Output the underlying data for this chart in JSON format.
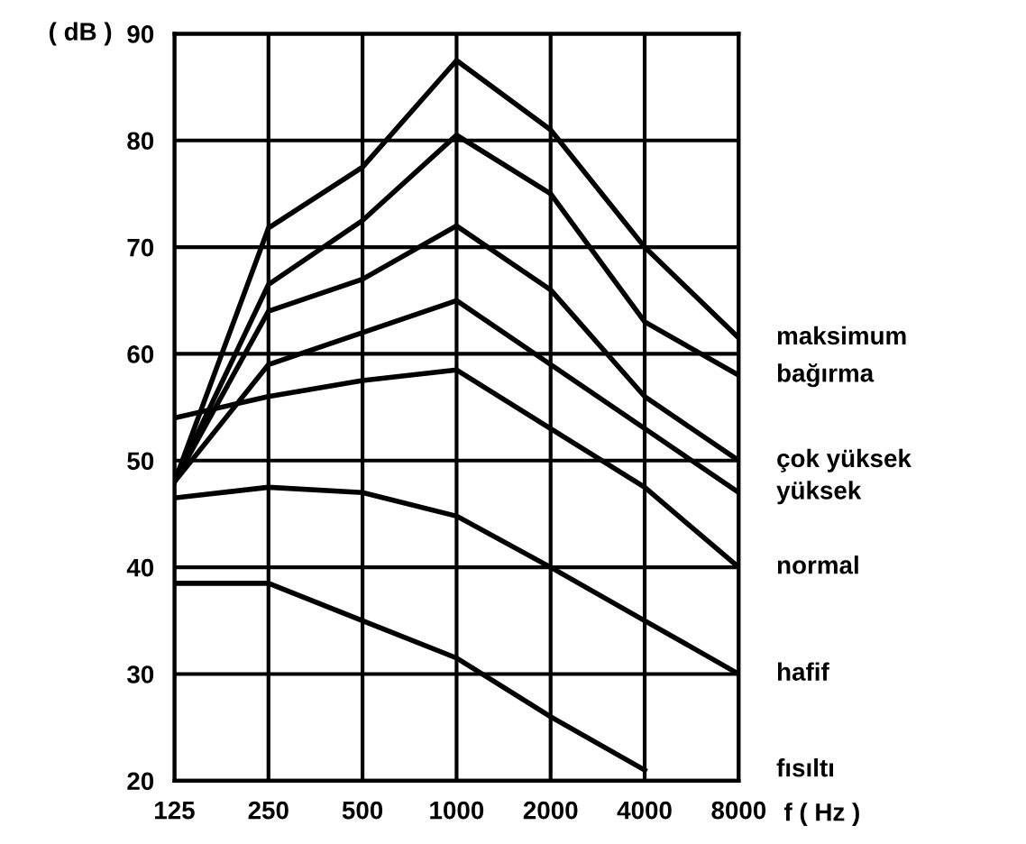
{
  "chart_data": {
    "type": "line",
    "ylabel": "( dB )",
    "xlabel": "f ( Hz )",
    "categories": [
      "125",
      "250",
      "500",
      "1000",
      "2000",
      "4000",
      "8000"
    ],
    "ylim": [
      20,
      90
    ],
    "yticks": [
      20,
      30,
      40,
      50,
      60,
      70,
      80,
      90
    ],
    "grid": true,
    "legend": false,
    "marker": "none",
    "line_style": "solid",
    "series": [
      {
        "name": "maksimum",
        "color": "#000000",
        "values": [
          48,
          71.8,
          77.5,
          87.5,
          81,
          70,
          61.5
        ]
      },
      {
        "name": "bağırma",
        "color": "#000000",
        "values": [
          48,
          66.5,
          72.5,
          80.5,
          75,
          63,
          58
        ]
      },
      {
        "name": "çok yüksek",
        "color": "#000000",
        "values": [
          48,
          64,
          67,
          72,
          66,
          56,
          50
        ]
      },
      {
        "name": "yüksek",
        "color": "#000000",
        "values": [
          48,
          59,
          62,
          65,
          59,
          53,
          47
        ]
      },
      {
        "name": "normal",
        "color": "#000000",
        "values": [
          54,
          56,
          57.5,
          58.5,
          53,
          47.5,
          40
        ]
      },
      {
        "name": "hafif",
        "color": "#000000",
        "values": [
          46.5,
          47.5,
          47,
          44.8,
          40,
          35,
          30
        ]
      },
      {
        "name": "fısıltı",
        "color": "#000000",
        "values": [
          38.5,
          38.5,
          35,
          31.5,
          26,
          21,
          null
        ]
      }
    ]
  }
}
